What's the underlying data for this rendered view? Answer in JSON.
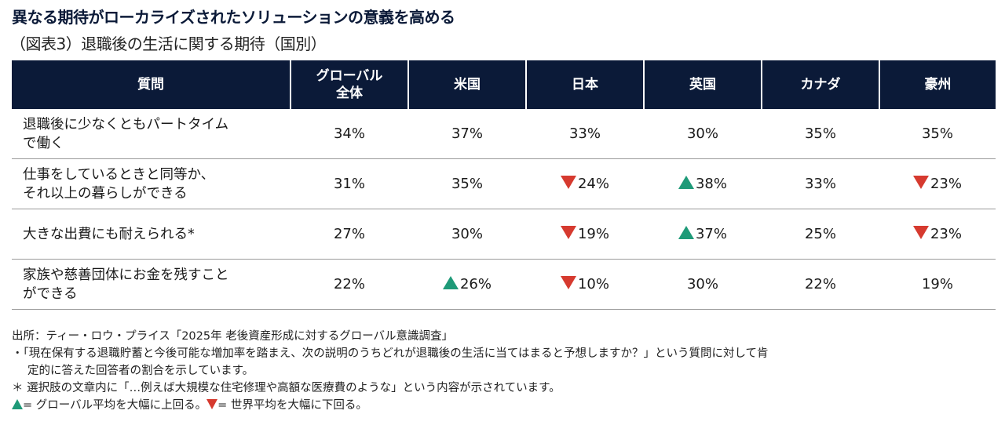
{
  "title": "異なる期待がローカライズされたソリューションの意義を高める",
  "subtitle": "（図表3）退職後の生活に関する期待（国別）",
  "colors": {
    "header_bg": "#0b1a38",
    "up": "#1e9a78",
    "down": "#d63a2f"
  },
  "chart_data": {
    "type": "table",
    "columns": [
      "質問",
      "グローバル\n全体",
      "米国",
      "日本",
      "英国",
      "カナダ",
      "豪州"
    ],
    "rows": [
      {
        "question": "退職後に少なくともパートタイム\nで働く",
        "cells": [
          {
            "value": "34%",
            "mark": null
          },
          {
            "value": "37%",
            "mark": null
          },
          {
            "value": "33%",
            "mark": null
          },
          {
            "value": "30%",
            "mark": null
          },
          {
            "value": "35%",
            "mark": null
          },
          {
            "value": "35%",
            "mark": null
          }
        ]
      },
      {
        "question": "仕事をしているときと同等か、\nそれ以上の暮らしができる",
        "cells": [
          {
            "value": "31%",
            "mark": null
          },
          {
            "value": "35%",
            "mark": null
          },
          {
            "value": "24%",
            "mark": "down"
          },
          {
            "value": "38%",
            "mark": "up"
          },
          {
            "value": "33%",
            "mark": null
          },
          {
            "value": "23%",
            "mark": "down"
          }
        ]
      },
      {
        "question": "大きな出費にも耐えられる*",
        "cells": [
          {
            "value": "27%",
            "mark": null
          },
          {
            "value": "30%",
            "mark": null
          },
          {
            "value": "19%",
            "mark": "down"
          },
          {
            "value": "37%",
            "mark": "up"
          },
          {
            "value": "25%",
            "mark": null
          },
          {
            "value": "23%",
            "mark": "down"
          }
        ]
      },
      {
        "question": "家族や慈善団体にお金を残すこと\nができる",
        "cells": [
          {
            "value": "22%",
            "mark": null
          },
          {
            "value": "26%",
            "mark": "up"
          },
          {
            "value": "10%",
            "mark": "down"
          },
          {
            "value": "30%",
            "mark": null
          },
          {
            "value": "22%",
            "mark": null
          },
          {
            "value": "19%",
            "mark": null
          }
        ]
      }
    ]
  },
  "notes": {
    "source": "出所：ティー・ロウ・プライス「2025年 老後資産形成に対するグローバル意識調査」",
    "bullet_1": "・「現在保有する退職貯蓄と今後可能な増加率を踏まえ、次の説明のうちどれが退職後の生活に当てはまると予想しますか？」という質問に対して肯",
    "bullet_1_cont": "定的に答えた回答者の割合を示しています。",
    "asterisk": "＊ 選択肢の文章内に「…例えば大規模な住宅修理や高額な医療費のような」という内容が示されています。",
    "legend_up": "= グローバル平均を大幅に上回る。",
    "legend_down": "= 世界平均を大幅に下回る。"
  }
}
